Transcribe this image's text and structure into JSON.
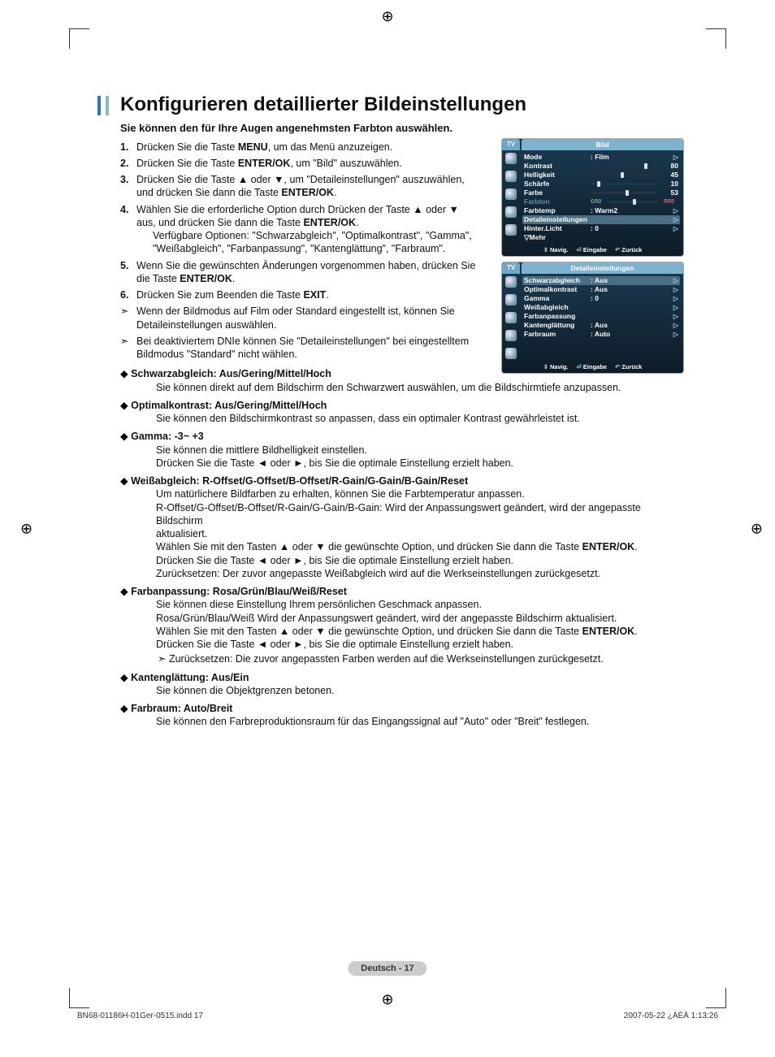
{
  "title": "Konfigurieren detaillierter Bildeinstellungen",
  "intro": "Sie können den für Ihre Augen angenehmsten Farbton auswählen.",
  "steps": [
    {
      "pre": "Drücken Sie die Taste ",
      "key": "MENU",
      "post": ", um das Menü anzuzeigen."
    },
    {
      "pre": "Drücken Sie die Taste ",
      "key": "ENTER/OK",
      "post": ", um \"Bild\" auszuwählen."
    },
    {
      "pre": "Drücken Sie die Taste ▲ oder ▼, um \"Detaileinstellungen\" auszuwählen, und drücken Sie dann die Taste ",
      "key": "ENTER/OK",
      "post": "."
    },
    {
      "pre": "Wählen Sie die erforderliche Option durch Drücken der Taste ▲ oder ▼ aus, und drücken Sie dann die Taste ",
      "key": "ENTER/OK",
      "post": ".",
      "extra": "Verfügbare Optionen: \"Schwarzabgleich\", \"Optimalkontrast\", \"Gamma\", \"Weißabgleich\", \"Farbanpassung\", \"Kantenglättung\", \"Farbraum\"."
    },
    {
      "pre": "Wenn Sie die gewünschten Änderungen vorgenommen haben, drücken Sie die Taste ",
      "key": "ENTER/OK",
      "post": "."
    },
    {
      "pre": "Drücken Sie zum Beenden die Taste ",
      "key": "EXIT",
      "post": "."
    }
  ],
  "notes": [
    "Wenn der Bildmodus auf Film oder Standard eingestellt ist, können Sie Detaileinstellungen  auswählen.",
    "Bei deaktiviertem DNIe können Sie \"Detaileinstellungen\" bei eingestelltem Bildmodus \"Standard\" nicht wählen."
  ],
  "details": [
    {
      "hdr": "Schwarzabgleich: Aus/Gering/Mittel/Hoch",
      "body": [
        "Sie können direkt auf dem Bildschirm den Schwarzwert auswählen, um die Bildschirmtiefe anzupassen."
      ]
    },
    {
      "hdr": "Optimalkontrast: Aus/Gering/Mittel/Hoch",
      "body": [
        "Sie können den Bildschirmkontrast so anpassen, dass ein optimaler Kontrast gewährleistet ist."
      ]
    },
    {
      "hdr": "Gamma: -3~ +3",
      "body": [
        "Sie können die mittlere Bildhelligkeit einstellen.",
        "Drücken Sie die Taste ◄ oder ►, bis Sie die optimale Einstellung erzielt haben."
      ]
    },
    {
      "hdr": "Weißabgleich: R-Offset/G-Offset/B-Offset/R-Gain/G-Gain/B-Gain/Reset",
      "body": [
        "Um natürlichere Bildfarben zu erhalten, können Sie die Farbtemperatur anpassen.",
        "R-Offset/G-Offset/B-Offset/R-Gain/G-Gain/B-Gain: Wird der Anpassungswert geändert, wird der angepasste Bildschirm",
        "aktualisiert.",
        "Wählen Sie mit den Tasten ▲ oder ▼ die gewünschte Option, und drücken Sie dann die Taste <b>ENTER/OK</b>.",
        "Drücken Sie die Taste ◄ oder ►, bis Sie die optimale Einstellung erzielt haben.",
        "Zurücksetzen: Der zuvor angepasste Weißabgleich wird auf die Werkseinstellungen zurückgesetzt."
      ]
    },
    {
      "hdr": "Farbanpassung: Rosa/Grün/Blau/Weiß/Reset",
      "body": [
        "Sie können diese Einstellung Ihrem persönlichen Geschmack anpassen.",
        "Rosa/Grün/Blau/Weiß Wird der Anpassungswert geändert, wird der angepasste Bildschirm aktualisiert.",
        "Wählen Sie mit den Tasten ▲ oder ▼ die gewünschte Option, und drücken Sie dann die Taste <b>ENTER/OK</b>.",
        "Drücken Sie die Taste ◄ oder ►, bis Sie die optimale Einstellung erzielt haben."
      ],
      "note": "Zurücksetzen: Die zuvor angepassten Farben werden auf die Werkseinstellungen zurückgesetzt."
    },
    {
      "hdr": "Kantenglättung: Aus/Ein",
      "body": [
        "Sie können die Objektgrenzen betonen."
      ]
    },
    {
      "hdr": "Farbraum: Auto/Breit",
      "body": [
        "Sie können den Farbreproduktionsraum für das Eingangssignal auf \"Auto\" oder \"Breit\" festlegen."
      ]
    }
  ],
  "osd1": {
    "tab": "TV",
    "title": "Bild",
    "rows": [
      {
        "label": "Mode",
        "val": ": Film",
        "tri": true
      },
      {
        "label": "Kontrast",
        "slider": 80,
        "num": "80"
      },
      {
        "label": "Helligkeit",
        "slider": 45,
        "num": "45"
      },
      {
        "label": "Schärfe",
        "slider": 10,
        "num": "10"
      },
      {
        "label": "Farbe",
        "slider": 53,
        "num": "53"
      },
      {
        "label": "Farbton",
        "gbar": true,
        "dim": true,
        "gl": "G50",
        "gr": "R50"
      },
      {
        "label": "Farbtemp",
        "val": ": Warm2",
        "tri": true
      },
      {
        "label": "Detaileinstellungen",
        "hl": true,
        "tri": true
      },
      {
        "label": "Hinter.Licht",
        "val": ": 0",
        "tri": true
      },
      {
        "label": "▽Mehr"
      }
    ],
    "footer": {
      "nav": "Navig.",
      "enter": "Eingabe",
      "back": "Zurück"
    }
  },
  "osd2": {
    "tab": "TV",
    "title": "Detaileinstellungen",
    "rows": [
      {
        "label": "Schwarzabgleich",
        "val": ": Aus",
        "hl": true,
        "tri": true
      },
      {
        "label": "Optimalkontrast",
        "val": ": Aus",
        "tri": true
      },
      {
        "label": "Gamma",
        "val": ": 0",
        "tri": true
      },
      {
        "label": "Weißabgleich",
        "tri": true
      },
      {
        "label": "Farbanpassung",
        "tri": true
      },
      {
        "label": "Kantenglättung",
        "val": ": Aus",
        "tri": true
      },
      {
        "label": "Farbraum",
        "val": ": Auto",
        "tri": true
      }
    ],
    "footer": {
      "nav": "Navig.",
      "enter": "Eingabe",
      "back": "Zurück"
    }
  },
  "pagenum": "Deutsch - 17",
  "footer": {
    "left": "BN68-01186H-01Ger-0515.indd   17",
    "right": "2007-05-22   ¿ÀÈÄ 1:13:26"
  }
}
